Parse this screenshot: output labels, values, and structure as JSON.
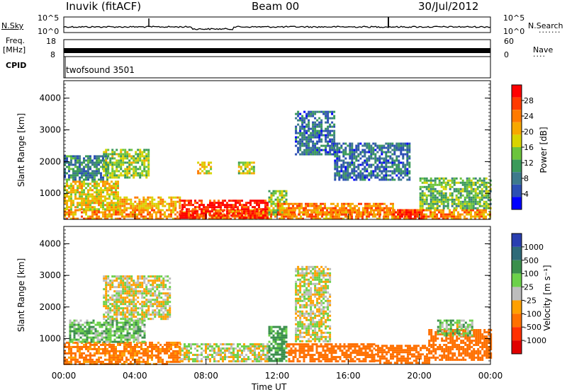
{
  "header": {
    "station": "Inuvik (fitACF)",
    "beam": "Beam 00",
    "date": "30/Jul/2012"
  },
  "top_panels": {
    "nsky_label": "N.Sky",
    "nsearch_label": "N.Search",
    "nsearch_dots": "·······",
    "nsky_ticks": [
      "10^5",
      "10^0"
    ],
    "nsearch_ticks": [
      "10^5",
      "10^0"
    ],
    "freq_label": "Freq.",
    "freq_unit": "[MHz]",
    "freq_ticks": [
      "18",
      "8"
    ],
    "nave_label": "Nave",
    "nave_dots": "····",
    "nave_ticks": [
      "60",
      "0"
    ],
    "cpid_label": "CPID",
    "cpid_value": "twofsound 3501"
  },
  "power_scale": {
    "label": "Power [dB]",
    "ticks": [
      "28",
      "24",
      "20",
      "16",
      "12",
      "8",
      "4"
    ],
    "colors": [
      "#ff0000",
      "#ff3b00",
      "#ff7a00",
      "#f7a800",
      "#d8d400",
      "#6cc43c",
      "#3a9a5a",
      "#3d7a8c",
      "#2c4fb4",
      "#0000ff"
    ]
  },
  "velocity_scale": {
    "label": "Velocity [m s⁻¹]",
    "ticks": [
      "1000",
      "500",
      "100",
      "25",
      "-25",
      "-100",
      "-500",
      "-1000"
    ],
    "colors": [
      "#2a3fb0",
      "#2f6a78",
      "#3b8f4c",
      "#6cd14a",
      "#bdbdbd",
      "#ffa000",
      "#ff7000",
      "#ff3000",
      "#e00000"
    ]
  },
  "axes": {
    "ylabel": "Slant Range [km]",
    "xlabel": "Time UT",
    "y_ticks": [
      "4000",
      "3000",
      "2000",
      "1000"
    ],
    "x_ticks": [
      "00:00",
      "04:00",
      "08:00",
      "12:00",
      "16:00",
      "20:00",
      "00:00"
    ]
  },
  "chart_data": [
    {
      "type": "heatmap",
      "title": "",
      "xlabel": "",
      "ylabel": "Slant Range [km]",
      "colorbar_label": "Power [dB]",
      "x_range_hours": [
        0,
        24
      ],
      "y_range_km": [
        180,
        4550
      ],
      "clim": [
        0,
        30
      ],
      "regions": [
        {
          "t0": 0.0,
          "t1": 24.0,
          "r0": 200,
          "r1": 500,
          "v": 22
        },
        {
          "t0": 0.0,
          "t1": 3.0,
          "r0": 500,
          "r1": 1400,
          "v": 18
        },
        {
          "t0": 0.0,
          "t1": 2.5,
          "r0": 1400,
          "r1": 2200,
          "v": 8
        },
        {
          "t0": 2.2,
          "t1": 4.8,
          "r0": 1500,
          "r1": 2400,
          "v": 14
        },
        {
          "t0": 3.0,
          "t1": 6.5,
          "r0": 500,
          "r1": 900,
          "v": 20
        },
        {
          "t0": 6.5,
          "t1": 11.5,
          "r0": 200,
          "r1": 800,
          "v": 29
        },
        {
          "t0": 7.5,
          "t1": 8.3,
          "r0": 1600,
          "r1": 2000,
          "v": 18
        },
        {
          "t0": 9.8,
          "t1": 10.7,
          "r0": 1600,
          "r1": 2000,
          "v": 16
        },
        {
          "t0": 11.5,
          "t1": 12.5,
          "r0": 300,
          "r1": 1100,
          "v": 14
        },
        {
          "t0": 12.0,
          "t1": 18.5,
          "r0": 300,
          "r1": 700,
          "v": 23
        },
        {
          "t0": 13.0,
          "t1": 15.2,
          "r0": 2200,
          "r1": 3600,
          "v": 6
        },
        {
          "t0": 15.2,
          "t1": 19.5,
          "r0": 1400,
          "r1": 2600,
          "v": 6
        },
        {
          "t0": 18.5,
          "t1": 20.2,
          "r0": 200,
          "r1": 500,
          "v": 27
        },
        {
          "t0": 20.0,
          "t1": 24.0,
          "r0": 500,
          "r1": 1500,
          "v": 12
        }
      ]
    },
    {
      "type": "heatmap",
      "title": "",
      "xlabel": "Time UT",
      "ylabel": "Slant Range [km]",
      "colorbar_label": "Velocity [m s⁻¹]",
      "x_range_hours": [
        0,
        24
      ],
      "y_range_km": [
        180,
        4550
      ],
      "clim": [
        -1000,
        1000
      ],
      "regions": [
        {
          "t0": 0.0,
          "t1": 6.5,
          "r0": 200,
          "r1": 900,
          "v": -150
        },
        {
          "t0": 0.3,
          "t1": 4.5,
          "r0": 900,
          "r1": 1600,
          "v": 80
        },
        {
          "t0": 2.2,
          "t1": 6.0,
          "r0": 1600,
          "r1": 3000,
          "v": 0
        },
        {
          "t0": 6.5,
          "t1": 11.5,
          "r0": 300,
          "r1": 850,
          "v": 0
        },
        {
          "t0": 11.5,
          "t1": 12.5,
          "r0": 300,
          "r1": 1400,
          "v": 150
        },
        {
          "t0": 12.5,
          "t1": 17.5,
          "r0": 250,
          "r1": 850,
          "v": -200
        },
        {
          "t0": 13.0,
          "t1": 15.0,
          "r0": 900,
          "r1": 3300,
          "v": 0
        },
        {
          "t0": 17.5,
          "t1": 20.5,
          "r0": 250,
          "r1": 800,
          "v": -200
        },
        {
          "t0": 20.5,
          "t1": 24.0,
          "r0": 300,
          "r1": 1300,
          "v": -350
        },
        {
          "t0": 21.0,
          "t1": 23.0,
          "r0": 1100,
          "r1": 1600,
          "v": 60
        }
      ]
    }
  ]
}
